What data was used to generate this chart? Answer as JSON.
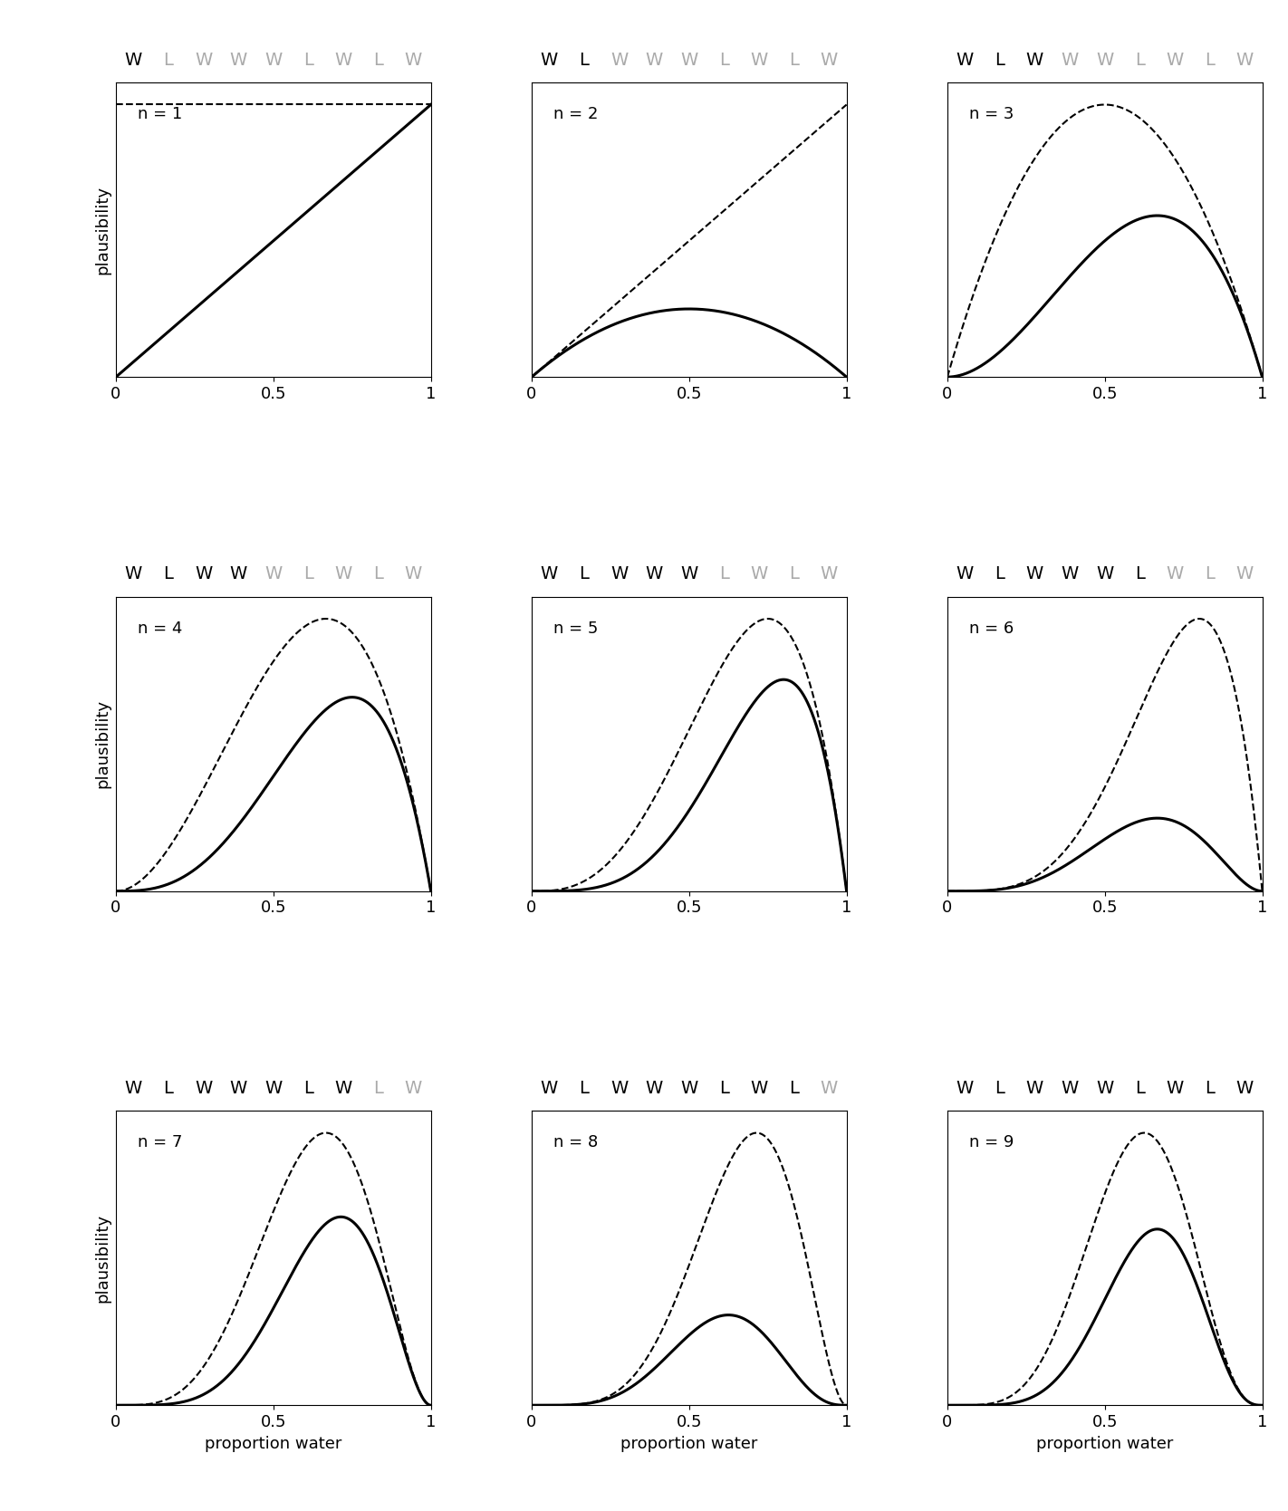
{
  "sequence": [
    "W",
    "L",
    "W",
    "W",
    "W",
    "L",
    "W",
    "L",
    "W"
  ],
  "n_plots": 9,
  "xlabel": "proportion water",
  "ylabel": "plausibility",
  "xlim": [
    0,
    1
  ],
  "xticks": [
    0,
    0.5,
    1
  ],
  "xticklabels": [
    "0",
    "0.5",
    "1"
  ],
  "figsize": [
    14.22,
    16.68
  ],
  "dpi": 100,
  "black_color": "#000000",
  "gray_color": "#aaaaaa",
  "bg_color": "#ffffff",
  "letter_fontsize": 14,
  "label_fontsize": 13,
  "n_label_fontsize": 13,
  "solid_lw": 2.2,
  "dashed_lw": 1.5
}
